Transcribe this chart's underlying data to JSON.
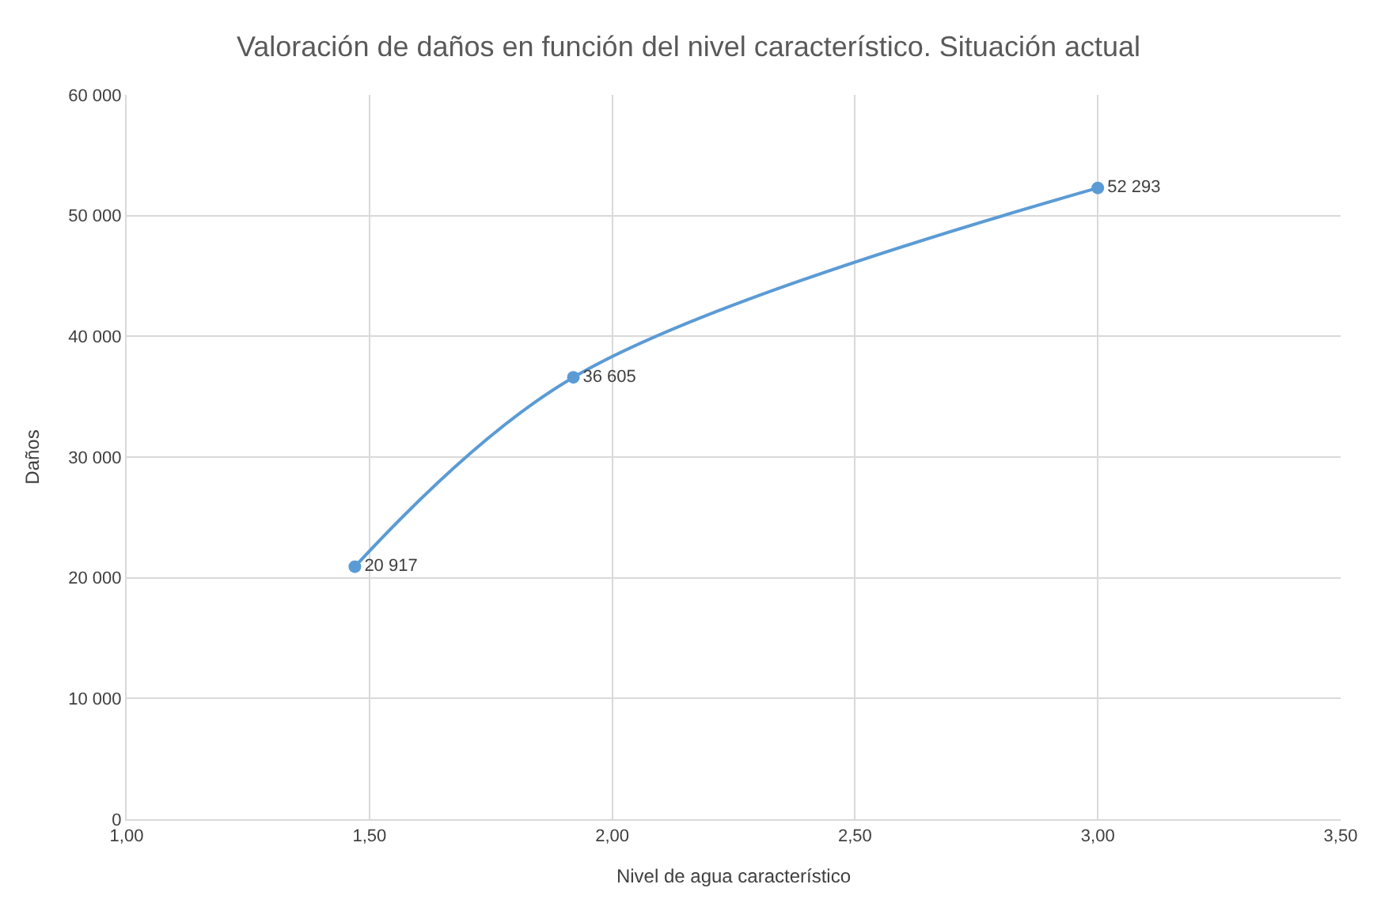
{
  "chart_data": {
    "type": "line",
    "title": "Valoración de daños en función del nivel característico. Situación actual",
    "xlabel": "Nivel de agua característico",
    "ylabel": "Daños",
    "x": [
      1.47,
      1.92,
      3.0
    ],
    "series": [
      {
        "color": "#5b9bd5",
        "values": [
          20917,
          36605,
          52293
        ],
        "value_labels": [
          "20 917",
          "36 605",
          "52 293"
        ]
      }
    ],
    "xlim": [
      1.0,
      3.5
    ],
    "xticks": [
      {
        "value": 1.0,
        "label": "1,00"
      },
      {
        "value": 1.5,
        "label": "1,50"
      },
      {
        "value": 2.0,
        "label": "2,00"
      },
      {
        "value": 2.5,
        "label": "2,50"
      },
      {
        "value": 3.0,
        "label": "3,00"
      },
      {
        "value": 3.5,
        "label": "3,50"
      }
    ],
    "ylim": [
      0,
      60000
    ],
    "yticks": [
      0,
      {
        "value": 10000,
        "label": "10 000"
      },
      {
        "value": 20000,
        "label": "20 000"
      },
      {
        "value": 30000,
        "label": "30 000"
      },
      {
        "value": 40000,
        "label": "40 000"
      },
      {
        "value": 50000,
        "label": "50 000"
      },
      {
        "value": 60000,
        "label": "60 000"
      }
    ],
    "grid": true,
    "marker": "circle",
    "line_style": "solid"
  }
}
